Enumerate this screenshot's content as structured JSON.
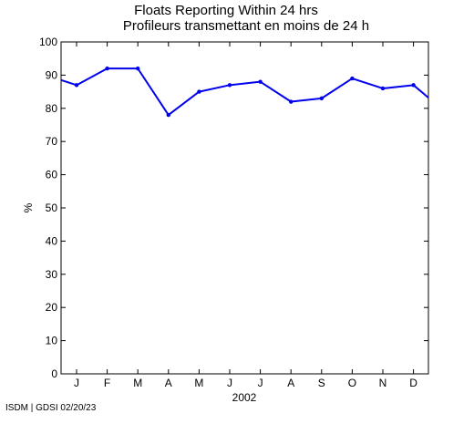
{
  "chart_data": {
    "type": "line",
    "title": "Floats Reporting Within 24 hrs",
    "subtitle": "Profileurs transmettant en moins de 24 h",
    "xlabel": "2002",
    "ylabel": "%",
    "categories": [
      "J",
      "F",
      "M",
      "A",
      "M",
      "J",
      "J",
      "A",
      "S",
      "O",
      "N",
      "D"
    ],
    "ylim": [
      0,
      100
    ],
    "yticks": [
      0,
      10,
      20,
      30,
      40,
      50,
      60,
      70,
      80,
      90,
      100
    ],
    "grid": false,
    "series": [
      {
        "color": "#0000ee",
        "start_value": 88.5,
        "values": [
          87,
          92,
          92,
          78,
          85,
          87,
          88,
          82,
          83,
          89,
          86,
          87
        ],
        "end_value": 83.2
      }
    ]
  },
  "footer": {
    "credit": "ISDM | GDSI 02/20/23"
  }
}
